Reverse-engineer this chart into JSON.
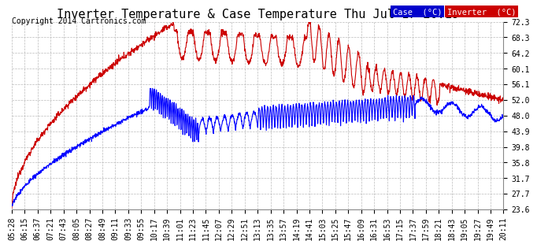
{
  "title": "Inverter Temperature & Case Temperature Thu Jul 17 20:19",
  "copyright": "Copyright 2014 Cartronics.com",
  "background_color": "#ffffff",
  "plot_bg_color": "#ffffff",
  "grid_color": "#bbbbbb",
  "yticks": [
    23.6,
    27.7,
    31.7,
    35.8,
    39.8,
    43.9,
    48.0,
    52.0,
    56.1,
    60.1,
    64.2,
    68.3,
    72.3
  ],
  "ymin": 23.6,
  "ymax": 72.3,
  "legend_case_label": "Case  (°C)",
  "legend_inv_label": "Inverter  (°C)",
  "case_color": "#0000ff",
  "inverter_color": "#cc0000",
  "case_legend_bg": "#0000cc",
  "inverter_legend_bg": "#cc0000",
  "legend_text_color": "#ffffff",
  "title_fontsize": 11,
  "copyright_fontsize": 7,
  "tick_fontsize": 7,
  "line_width": 0.8,
  "xtick_labels": [
    "05:28",
    "06:15",
    "06:37",
    "07:21",
    "07:43",
    "08:05",
    "08:27",
    "08:49",
    "09:11",
    "09:33",
    "09:55",
    "10:17",
    "10:39",
    "11:01",
    "11:23",
    "11:45",
    "12:07",
    "12:29",
    "12:51",
    "13:13",
    "13:35",
    "13:57",
    "14:19",
    "14:41",
    "15:03",
    "15:25",
    "15:47",
    "16:09",
    "16:31",
    "16:53",
    "17:15",
    "17:37",
    "17:59",
    "18:21",
    "18:43",
    "19:05",
    "19:27",
    "19:49",
    "20:11"
  ]
}
